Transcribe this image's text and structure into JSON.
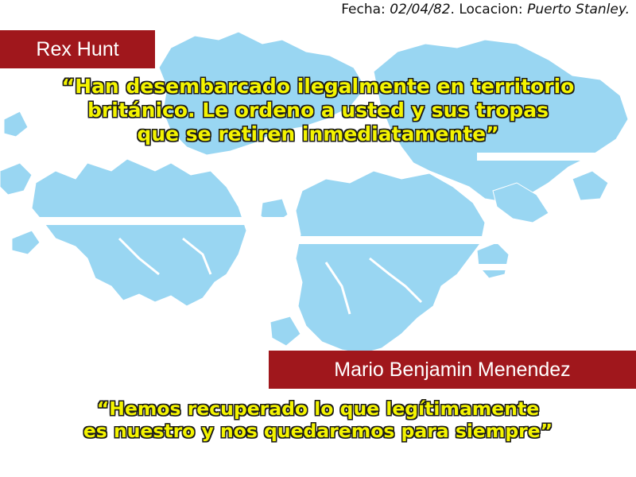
{
  "caption": {
    "date_label": "Fecha: ",
    "date_value": "02/04/82",
    "location_label": ". Locacion: ",
    "location_value": "Puerto Stanley."
  },
  "speaker_top": {
    "name": "Rex Hunt",
    "quote_line1": "“Han desembarcado ilegalmente en territorio",
    "quote_line2": "británico. Le ordeno a usted y sus tropas",
    "quote_line3": "que se retiren inmediatamente”"
  },
  "speaker_bottom": {
    "name": "Mario Benjamin Menendez",
    "quote_line1": "“Hemos recuperado lo que legítimamente",
    "quote_line2": "es nuestro y nos quedaremos para siempre”"
  },
  "colors": {
    "map_fill": "#99d6f2",
    "map_band": "#ffffff",
    "name_box": "#a0171c",
    "quote_text": "#f4f400"
  },
  "icons": {
    "map": "falkland-islands-map"
  }
}
